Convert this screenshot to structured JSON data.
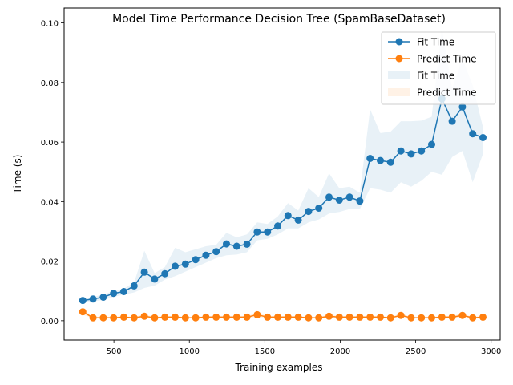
{
  "chart_data": {
    "type": "line",
    "title": "Model Time Performance Decision Tree (SpamBaseDataset)",
    "xlabel": "Training examples",
    "ylabel": "Time (s)",
    "xlim": [
      170,
      3060
    ],
    "ylim": [
      -0.0065,
      0.105
    ],
    "xticks": [
      500,
      1000,
      1500,
      2000,
      2500,
      3000
    ],
    "xtick_labels": [
      "500",
      "1000",
      "1500",
      "2000",
      "2500",
      "3000"
    ],
    "yticks": [
      0.0,
      0.02,
      0.04,
      0.06,
      0.08,
      0.1
    ],
    "ytick_labels": [
      "0.00",
      "0.02",
      "0.04",
      "0.06",
      "0.08",
      "0.10"
    ],
    "grid": false,
    "legend_position": "top-right",
    "legend": [
      {
        "label": "Fit Time",
        "kind": "line"
      },
      {
        "label": "Predict Time",
        "kind": "line"
      },
      {
        "label": "Fit Time",
        "kind": "band"
      },
      {
        "label": "Predict Time",
        "kind": "band"
      }
    ],
    "x": [
      294,
      362,
      430,
      498,
      566,
      634,
      702,
      770,
      838,
      906,
      974,
      1042,
      1110,
      1178,
      1246,
      1314,
      1382,
      1450,
      1518,
      1586,
      1654,
      1722,
      1790,
      1858,
      1926,
      1994,
      2062,
      2130,
      2198,
      2266,
      2334,
      2402,
      2470,
      2538,
      2606,
      2674,
      2742,
      2810,
      2878,
      2946
    ],
    "series": [
      {
        "name": "Fit Time",
        "color": "#1f77b4",
        "values": [
          0.0068,
          0.0073,
          0.0079,
          0.0092,
          0.0098,
          0.0117,
          0.0163,
          0.014,
          0.0158,
          0.0183,
          0.019,
          0.0205,
          0.022,
          0.0232,
          0.0258,
          0.025,
          0.0257,
          0.0298,
          0.0298,
          0.0318,
          0.0353,
          0.0338,
          0.0367,
          0.0378,
          0.0415,
          0.0405,
          0.0415,
          0.0402,
          0.0545,
          0.0538,
          0.0532,
          0.057,
          0.056,
          0.057,
          0.0592,
          0.0745,
          0.067,
          0.0718,
          0.0628,
          0.0615
        ],
        "band_lower": [
          0.006,
          0.0065,
          0.007,
          0.008,
          0.0088,
          0.0095,
          0.011,
          0.0118,
          0.0138,
          0.015,
          0.0165,
          0.018,
          0.0195,
          0.021,
          0.022,
          0.0222,
          0.023,
          0.027,
          0.0275,
          0.029,
          0.031,
          0.031,
          0.033,
          0.034,
          0.036,
          0.0365,
          0.0375,
          0.0375,
          0.0445,
          0.044,
          0.043,
          0.0465,
          0.045,
          0.047,
          0.05,
          0.049,
          0.055,
          0.057,
          0.0465,
          0.056
        ],
        "band_upper": [
          0.0075,
          0.008,
          0.0088,
          0.01,
          0.0108,
          0.0128,
          0.0235,
          0.016,
          0.018,
          0.0245,
          0.023,
          0.024,
          0.025,
          0.0255,
          0.0295,
          0.028,
          0.029,
          0.033,
          0.0325,
          0.035,
          0.0395,
          0.037,
          0.0445,
          0.0415,
          0.0495,
          0.0445,
          0.045,
          0.043,
          0.071,
          0.063,
          0.0635,
          0.067,
          0.067,
          0.0672,
          0.0685,
          0.098,
          0.078,
          0.088,
          0.079,
          0.065
        ]
      },
      {
        "name": "Predict Time",
        "color": "#ff7f0e",
        "values": [
          0.003,
          0.001,
          0.001,
          0.001,
          0.0012,
          0.001,
          0.0015,
          0.001,
          0.0012,
          0.0012,
          0.001,
          0.001,
          0.0012,
          0.0012,
          0.0012,
          0.0012,
          0.0012,
          0.002,
          0.0012,
          0.0012,
          0.0012,
          0.0012,
          0.001,
          0.001,
          0.0015,
          0.0012,
          0.0012,
          0.0012,
          0.0012,
          0.0012,
          0.001,
          0.0018,
          0.001,
          0.001,
          0.001,
          0.0012,
          0.0012,
          0.0018,
          0.001,
          0.0012
        ],
        "band_lower": [
          0.002,
          0.0008,
          0.0008,
          0.0008,
          0.0009,
          0.0008,
          0.001,
          0.0008,
          0.0009,
          0.0009,
          0.0008,
          0.0008,
          0.0009,
          0.0009,
          0.0009,
          0.0009,
          0.0009,
          0.0012,
          0.0009,
          0.0009,
          0.0009,
          0.0009,
          0.0008,
          0.0008,
          0.001,
          0.0009,
          0.0009,
          0.0009,
          0.0009,
          0.0009,
          0.0008,
          0.0012,
          0.0008,
          0.0008,
          0.0008,
          0.0009,
          0.0009,
          0.0012,
          0.0008,
          0.0009
        ],
        "band_upper": [
          0.004,
          0.0013,
          0.0013,
          0.0013,
          0.0016,
          0.0013,
          0.0022,
          0.0013,
          0.0016,
          0.0016,
          0.0013,
          0.0013,
          0.0016,
          0.0016,
          0.0016,
          0.0016,
          0.0016,
          0.0028,
          0.0016,
          0.0016,
          0.0016,
          0.0016,
          0.0013,
          0.0013,
          0.0022,
          0.0016,
          0.0016,
          0.0016,
          0.0016,
          0.0016,
          0.0013,
          0.0025,
          0.0013,
          0.0013,
          0.0013,
          0.0016,
          0.0016,
          0.0025,
          0.0013,
          0.0016
        ]
      }
    ]
  }
}
